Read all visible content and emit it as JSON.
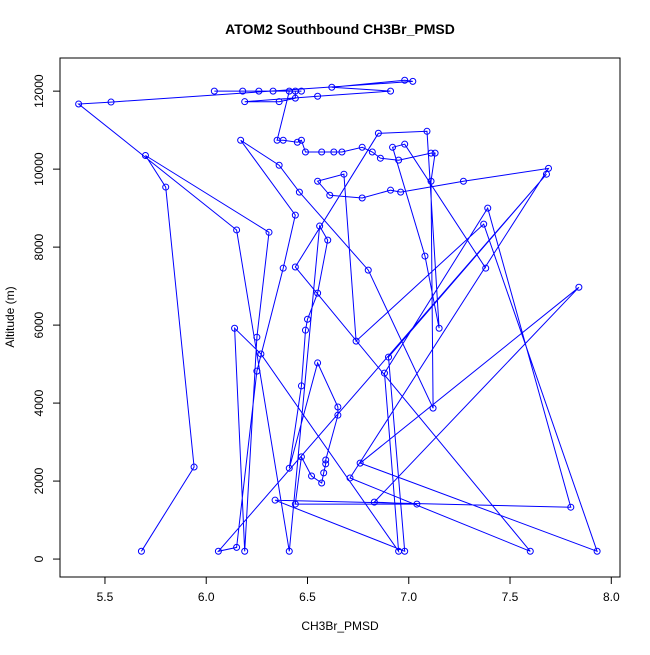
{
  "chart_data": {
    "type": "line",
    "title": "ATOM2 Southbound CH3Br_PMSD",
    "x_label": "CH3Br_PMSD",
    "y_label": "Altitude (m)",
    "xlim": [
      5.278,
      8.043
    ],
    "ylim": [
      -460,
      12850
    ],
    "xticks": [
      5.5,
      {
        "value": 6,
        "label": "6.0"
      },
      6.5,
      {
        "value": 7,
        "label": "7.0"
      },
      7.5,
      {
        "value": 8,
        "label": "8.0"
      }
    ],
    "yticks": [
      0,
      2000,
      4000,
      6000,
      8000,
      10000,
      12000
    ],
    "color": "#0000ff",
    "markers": true,
    "x": [
      5.68,
      5.94,
      5.8,
      5.7,
      6.31,
      6.25,
      6.19,
      6.14,
      6.27,
      6.95,
      6.88,
      7.39,
      7.8,
      6.34,
      6.98,
      6.9,
      7.68,
      6.06,
      6.15,
      6.25,
      6.38,
      6.44,
      6.17,
      6.36,
      6.46,
      6.8,
      7.12,
      7.11,
      7.13,
      7.11,
      6.95,
      6.86,
      6.82,
      6.77,
      6.67,
      6.63,
      6.57,
      6.49,
      6.47,
      6.45,
      6.38,
      6.35,
      6.41,
      6.33,
      6.26,
      6.18,
      6.04,
      6.47,
      6.44,
      6.44,
      6.36,
      6.19,
      6.55,
      6.91,
      6.62,
      6.98,
      7.02,
      5.53,
      5.37,
      6.15,
      6.41,
      6.56,
      6.6,
      6.55,
      6.5,
      6.49,
      6.47,
      6.41,
      6.55,
      6.65,
      6.65,
      6.59,
      6.59,
      6.58,
      6.57,
      6.52,
      6.47,
      6.44,
      7.04,
      6.83,
      7.84,
      6.76,
      7.93,
      7.37,
      6.74,
      6.68,
      6.55,
      6.61,
      6.77,
      6.91,
      6.96,
      7.27,
      7.69,
      6.71,
      7.6,
      6.44,
      6.85,
      7.09,
      7.15,
      7.08,
      6.92,
      6.98,
      7.38
    ],
    "y": [
      200,
      2360,
      9540,
      10350,
      8380,
      5690,
      200,
      5920,
      5260,
      200,
      4770,
      9000,
      1330,
      1510,
      200,
      5180,
      9870,
      200,
      300,
      4820,
      7460,
      8820,
      10740,
      10100,
      9410,
      7410,
      3870,
      9690,
      10410,
      10410,
      10230,
      10280,
      10440,
      10560,
      10440,
      10440,
      10440,
      10440,
      10740,
      10690,
      10740,
      10740,
      12000,
      12000,
      12000,
      12000,
      12000,
      12000,
      12000,
      11820,
      11730,
      11730,
      11870,
      12000,
      12100,
      12280,
      12250,
      11720,
      11670,
      8440,
      200,
      8540,
      8180,
      6820,
      6150,
      5870,
      4440,
      2330,
      5030,
      3900,
      3690,
      2540,
      2440,
      2210,
      1950,
      2130,
      2620,
      1410,
      1410,
      1460,
      6970,
      2460,
      200,
      8590,
      5590,
      9870,
      9690,
      9330,
      9260,
      9460,
      9410,
      9690,
      10020,
      2080,
      200,
      7490,
      10920,
      10970,
      5920,
      7770,
      10560,
      10640,
      7460
    ]
  }
}
